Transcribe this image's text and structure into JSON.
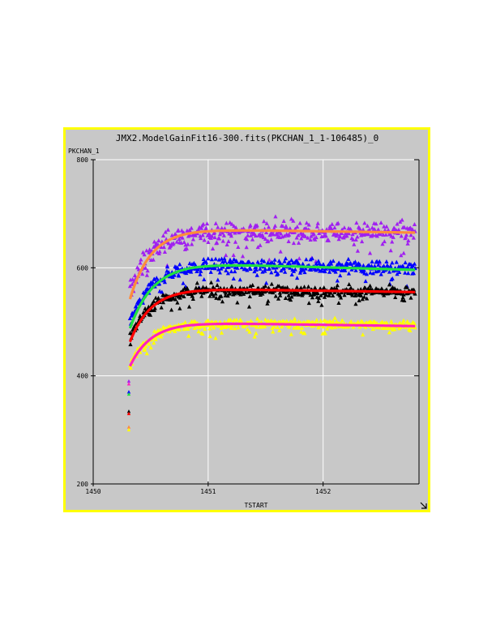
{
  "window": {
    "title": "JMX2.ModelGainFit16-300.fits(PKCHAN_1_1-106485)_0"
  },
  "colors": {
    "frame_border": "#ffff00",
    "plot_background": "#c8c8c8",
    "corner_icon": "resize-arrow-icon"
  },
  "chart_data": {
    "type": "scatter",
    "title": "JMX2.ModelGainFit16-300.fits(PKCHAN_1_1-106485)_0",
    "xlabel": "TSTART",
    "ylabel": "PKCHAN_1",
    "xlim": [
      1450,
      1452.82
    ],
    "ylim": [
      200,
      800
    ],
    "xticks": [
      "1450",
      "1451",
      "1452"
    ],
    "yticks": [
      "800",
      "600",
      "400",
      "200"
    ],
    "grid": true,
    "legend": "none",
    "series": [
      {
        "color": "#a020f0",
        "marker": "triangle",
        "plateau": 668,
        "start": 555,
        "tau": 0.18,
        "noise": 14,
        "drift": -4
      },
      {
        "color": "#0000ff",
        "marker": "triangle",
        "plateau": 607,
        "start": 500,
        "tau": 0.2,
        "noise": 9,
        "drift": -8
      },
      {
        "color": "#000000",
        "marker": "triangle",
        "plateau": 560,
        "start": 470,
        "tau": 0.18,
        "noise": 8,
        "drift": -6
      },
      {
        "color": "#ffff00",
        "marker": "triangle",
        "plateau": 498,
        "start": 418,
        "tau": 0.18,
        "noise": 6,
        "drift": -4
      }
    ],
    "fits": [
      {
        "color": "#ff8c3a",
        "plateau": 671,
        "start": 542,
        "tau": 0.18,
        "drift": -6
      },
      {
        "color": "#20e040",
        "plateau": 608,
        "start": 488,
        "tau": 0.2,
        "drift": -12
      },
      {
        "color": "#ff0000",
        "plateau": 561,
        "start": 463,
        "tau": 0.18,
        "drift": -6
      },
      {
        "color": "#ff20c0",
        "plateau": 498,
        "start": 418,
        "tau": 0.18,
        "drift": -6
      }
    ],
    "x_range": [
      1450.32,
      1452.8
    ],
    "early_markers": [
      {
        "x": 1450.31,
        "y": 390,
        "color": "#a020f0"
      },
      {
        "x": 1450.31,
        "y": 385,
        "color": "#ff20c0"
      },
      {
        "x": 1450.31,
        "y": 370,
        "color": "#0000ff"
      },
      {
        "x": 1450.31,
        "y": 366,
        "color": "#20e040"
      },
      {
        "x": 1450.31,
        "y": 334,
        "color": "#000000"
      },
      {
        "x": 1450.31,
        "y": 330,
        "color": "#ff0000"
      },
      {
        "x": 1450.31,
        "y": 305,
        "color": "#ff8c3a"
      },
      {
        "x": 1450.31,
        "y": 300,
        "color": "#ffff00"
      }
    ]
  }
}
